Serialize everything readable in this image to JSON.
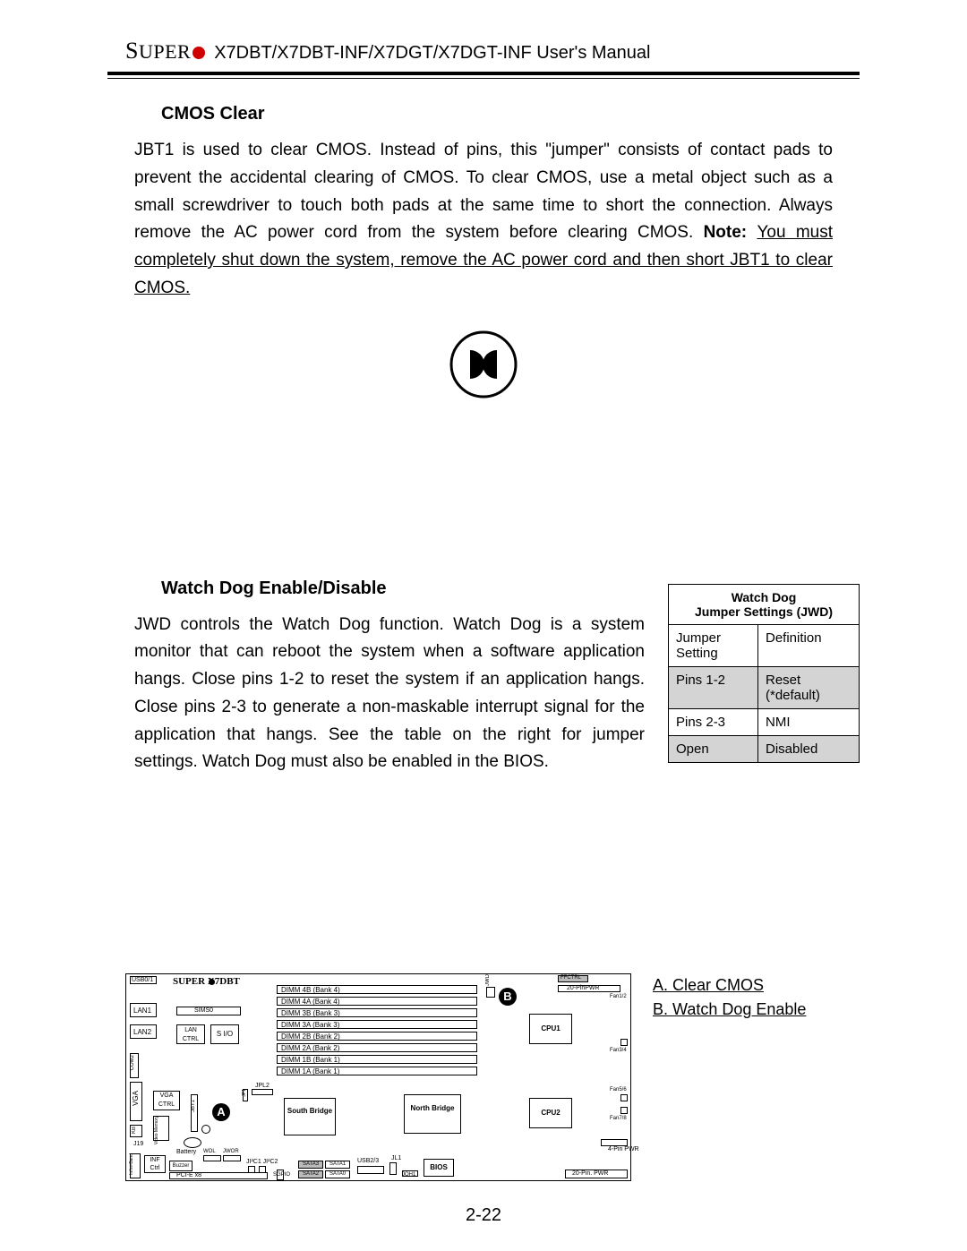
{
  "header": {
    "brand_prefix": "S",
    "brand_rest": "UPER",
    "title": " X7DBT/X7DBT-INF/X7DGT/X7DGT-INF User's Manual"
  },
  "section1": {
    "heading": "CMOS Clear",
    "body_plain": "JBT1 is used to clear CMOS.  Instead of pins, this \"jumper\" consists of contact pads to prevent the accidental clearing of CMOS.  To clear CMOS, use a metal object such as a small screwdriver to touch both pads at the same time to short the connection.  Always remove the AC power cord from the system before clearing CMOS.  ",
    "note_label": "Note: ",
    "note_underlined": "You must completely shut down the system, remove the AC power cord and then short JBT1 to clear CMOS."
  },
  "section2": {
    "heading": "Watch Dog Enable/Disable",
    "body": "JWD controls the Watch Dog function.  Watch Dog is a system monitor that can reboot the system when a software application hangs.  Close pins 1-2 to  reset the system if an application hangs.  Close pins 2-3 to generate a non-maskable interrupt signal for the application that hangs.  See the table on the right for jumper settings.  Watch Dog must also be enabled in the BIOS."
  },
  "jumper_table": {
    "title_line1": "Watch Dog",
    "title_line2": "Jumper Settings (JWD)",
    "col0": "Jumper Setting",
    "col1": "Definition",
    "rows": [
      {
        "c0": "Pins 1-2",
        "c1": "Reset (*default)",
        "shade": true
      },
      {
        "c0": "Pins 2-3",
        "c1": "NMI",
        "shade": false
      },
      {
        "c0": "Open",
        "c1": "Disabled",
        "shade": true
      }
    ]
  },
  "board": {
    "brand": "SUPER  X7DBT",
    "dimms": [
      "DIMM 4B (Bank 4)",
      "DIMM 4A (Bank 4)",
      "DIMM 3B (Bank 3)",
      "DIMM 3A (Bank 3)",
      "DIMM 2B (Bank 2)",
      "DIMM 2A (Bank 2)",
      "DIMM 1B (Bank 1)",
      "DIMM 1A (Bank 1)"
    ],
    "labels": {
      "usb01": "USB0/1",
      "lan1": "LAN1",
      "lan2": "LAN2",
      "sims0": "SIMS0",
      "lanctrl": "LAN CTRL",
      "sio": "S I/O",
      "vga": "VGA",
      "vgactrl": "VGA CTRL",
      "kb": "KB",
      "com2": "COM2",
      "j19": "J19",
      "infctrl": "INF Ctrl",
      "infini": "Infini-Band",
      "buzzer": "Buzzer",
      "wol": "WOL",
      "jwor": "JWOR",
      "battery": "Battery",
      "jpl2": "JPL2",
      "jp1": "JP1",
      "jbt1": "JBT1",
      "pcie": "PCI-E  x8",
      "sgpio": "SGPIO",
      "joh1": "JOH1",
      "i2c": "JI²C1 JI²C2",
      "jl1": "JL1",
      "usb23": "USB2/3",
      "sata0": "SATA0",
      "sata1": "SATA1",
      "sata2": "SATA2",
      "sata3": "SATA3",
      "north": "North Bridge",
      "south": "South Bridge",
      "bios": "BIOS",
      "cpu1": "CPU1",
      "cpu2": "CPU2",
      "jwd": "JWD",
      "ffctrl": "FFCTRL",
      "pinpwr20": "20-PinPWR",
      "pin4": "4-Pin PWR",
      "pin20b": "20-Pin. PWR",
      "fan12": "Fan1/2",
      "fan34": "Fan3/4",
      "fan56": "Fan5/6",
      "fan78": "Fan7/8",
      "video": "Video Memory"
    },
    "markerA": "A",
    "markerB": "B"
  },
  "legend": {
    "a": "A. Clear CMOS",
    "b": "B. Watch Dog Enable"
  },
  "page_number": "2-22",
  "colors": {
    "red": "#d00000",
    "shade": "#d4d4d4"
  }
}
